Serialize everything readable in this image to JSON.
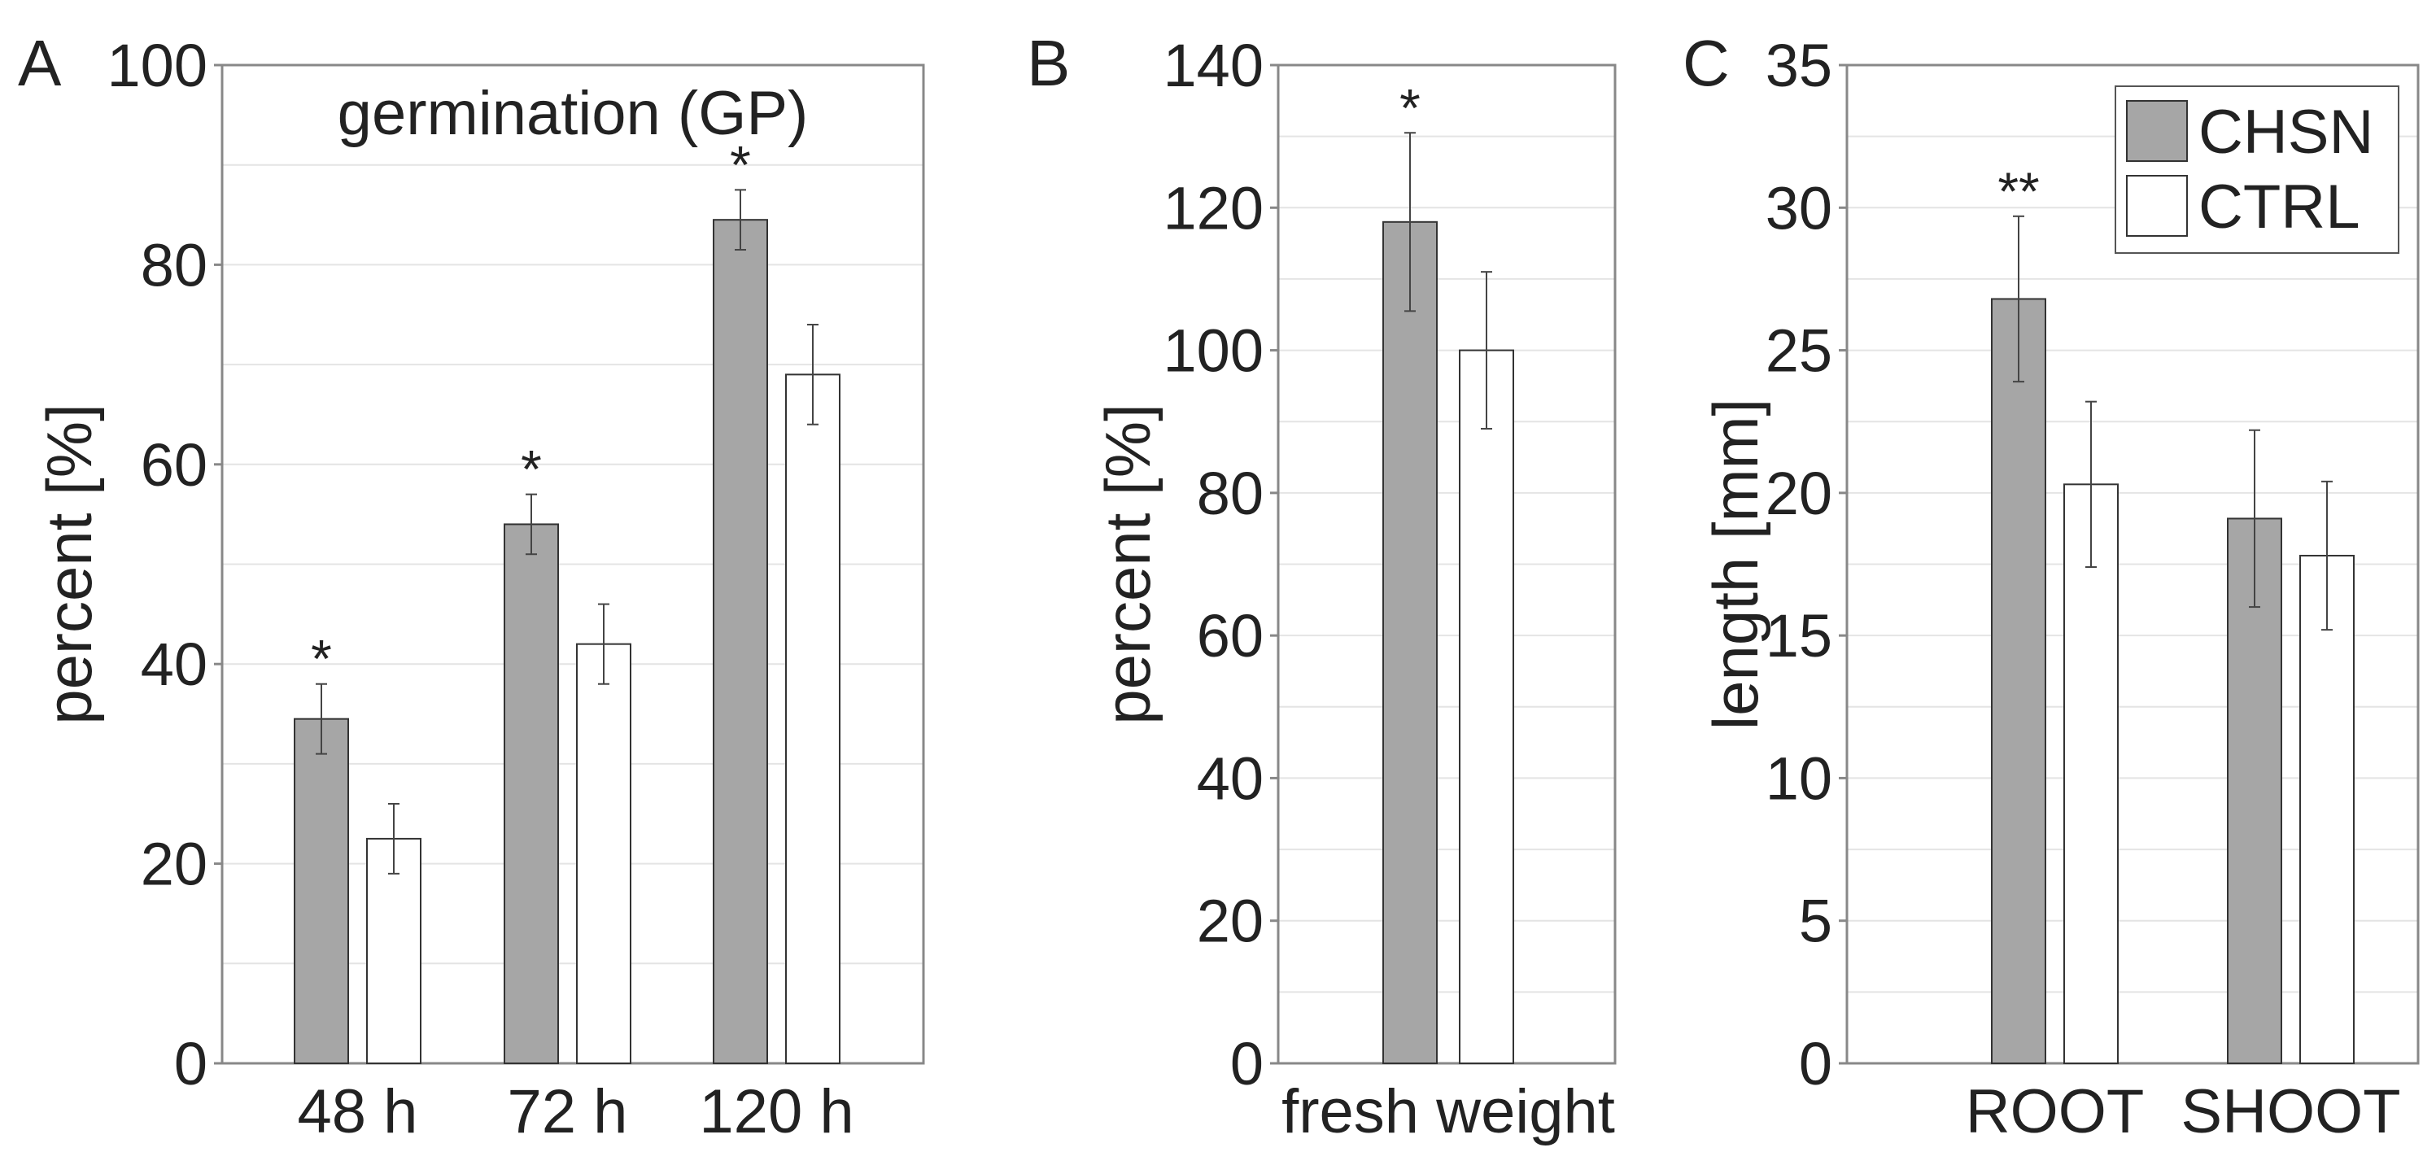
{
  "colors": {
    "chsn": "#a6a6a6",
    "ctrl": "#ffffff",
    "bar_stroke": "#333333",
    "axis": "#888888",
    "grid": "#e4e4e4",
    "text": "#222222"
  },
  "legend": {
    "items": [
      "CHSN",
      "CTRL"
    ],
    "placement": "top-right of panel C"
  },
  "chart_data": [
    {
      "panel_label": "A",
      "type": "bar",
      "title": "germination (GP)",
      "xlabel": "",
      "ylabel": "percent [%]",
      "ylim": [
        0,
        100
      ],
      "yticks": [
        "0",
        "20",
        "40",
        "60",
        "80",
        "100"
      ],
      "grid": true,
      "categories": [
        "48 h",
        "72 h",
        "120 h"
      ],
      "series": [
        {
          "name": "CHSN",
          "values": [
            34.5,
            54,
            84.5
          ],
          "errors": [
            3.5,
            3,
            3
          ]
        },
        {
          "name": "CTRL",
          "values": [
            22.5,
            42,
            69
          ],
          "errors": [
            3.5,
            4,
            5
          ]
        }
      ],
      "annotations": [
        {
          "series": "CHSN",
          "category": "48 h",
          "text": "*"
        },
        {
          "series": "CHSN",
          "category": "72 h",
          "text": "*"
        },
        {
          "series": "CHSN",
          "category": "120 h",
          "text": "*"
        }
      ]
    },
    {
      "panel_label": "B",
      "type": "bar",
      "title": "",
      "xlabel": "",
      "ylabel": "percent [%]",
      "ylim": [
        0,
        140
      ],
      "yticks": [
        "0",
        "20",
        "40",
        "60",
        "80",
        "100",
        "120",
        "140"
      ],
      "grid": true,
      "categories": [
        "fresh weight"
      ],
      "series": [
        {
          "name": "CHSN",
          "values": [
            118
          ],
          "errors": [
            12.5
          ]
        },
        {
          "name": "CTRL",
          "values": [
            100
          ],
          "errors": [
            11
          ]
        }
      ],
      "annotations": [
        {
          "series": "CHSN",
          "category": "fresh weight",
          "text": "*"
        }
      ]
    },
    {
      "panel_label": "C",
      "type": "bar",
      "title": "",
      "xlabel": "",
      "ylabel": "length [mm]",
      "ylim": [
        0,
        35
      ],
      "yticks": [
        "0",
        "5",
        "10",
        "15",
        "20",
        "25",
        "30",
        "35"
      ],
      "grid": true,
      "categories": [
        "ROOT",
        "SHOOT"
      ],
      "series": [
        {
          "name": "CHSN",
          "values": [
            26.8,
            19.1
          ],
          "errors": [
            2.9,
            3.1
          ]
        },
        {
          "name": "CTRL",
          "values": [
            20.3,
            17.8
          ],
          "errors": [
            2.9,
            2.6
          ]
        }
      ],
      "annotations": [
        {
          "series": "CHSN",
          "category": "ROOT",
          "text": "**"
        }
      ]
    }
  ]
}
